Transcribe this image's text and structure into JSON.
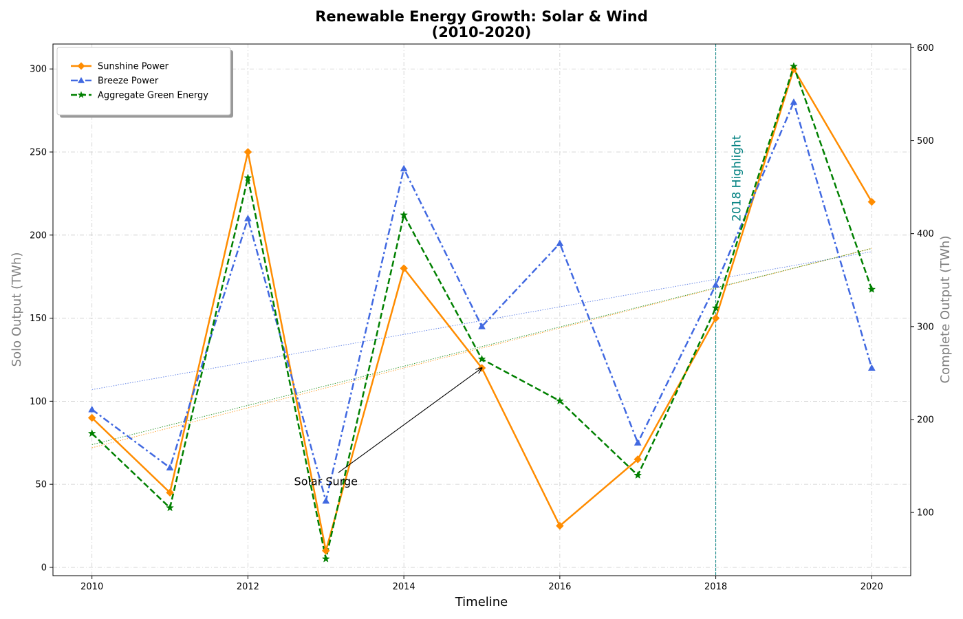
{
  "chart_data": {
    "type": "line",
    "title": "Renewable Energy Growth: Solar & Wind",
    "subtitle": "(2010-2020)",
    "xlabel": "Timeline",
    "ylabel_left": "Solo Output (TWh)",
    "ylabel_right": "Complete Output (TWh)",
    "x": [
      2010,
      2011,
      2012,
      2013,
      2014,
      2015,
      2016,
      2017,
      2018,
      2019,
      2020
    ],
    "xlim": [
      2009.5,
      2020.5
    ],
    "x_ticks": [
      2010,
      2012,
      2014,
      2016,
      2018,
      2020
    ],
    "ylim_left": [
      -5,
      315
    ],
    "y_ticks_left": [
      0,
      50,
      100,
      150,
      200,
      250,
      300
    ],
    "ylim_right": [
      32,
      604
    ],
    "y_ticks_right": [
      100,
      200,
      300,
      400,
      500,
      600
    ],
    "grid": true,
    "legend_position": "top-left",
    "series": [
      {
        "name": "Sunshine Power",
        "axis": "left",
        "color": "#ff8c00",
        "marker": "diamond",
        "line_style": "solid",
        "values": [
          90,
          45,
          250,
          10,
          180,
          120,
          25,
          65,
          150,
          300,
          220
        ],
        "trend": [
          72,
          192
        ]
      },
      {
        "name": "Breeze Power",
        "axis": "left",
        "color": "#4169e1",
        "marker": "triangle",
        "line_style": "dashdot",
        "values": [
          95,
          60,
          210,
          40,
          240,
          145,
          195,
          75,
          170,
          280,
          120
        ],
        "trend": [
          107,
          190
        ]
      },
      {
        "name": "Aggregate Green Energy",
        "axis": "right",
        "color": "#008000",
        "marker": "star",
        "line_style": "dashed",
        "values": [
          185,
          105,
          460,
          50,
          420,
          265,
          220,
          140,
          320,
          580,
          340
        ],
        "trend": [
          173,
          384
        ]
      }
    ],
    "annotations": [
      {
        "text": "Solar Surge",
        "x": 2013,
        "y": 52,
        "arrow_to_x": 2015,
        "arrow_to_y": 120,
        "axis": "left"
      }
    ],
    "vertical_lines": [
      {
        "x": 2018,
        "label": "2018 Highlight",
        "color": "#008080"
      }
    ]
  }
}
